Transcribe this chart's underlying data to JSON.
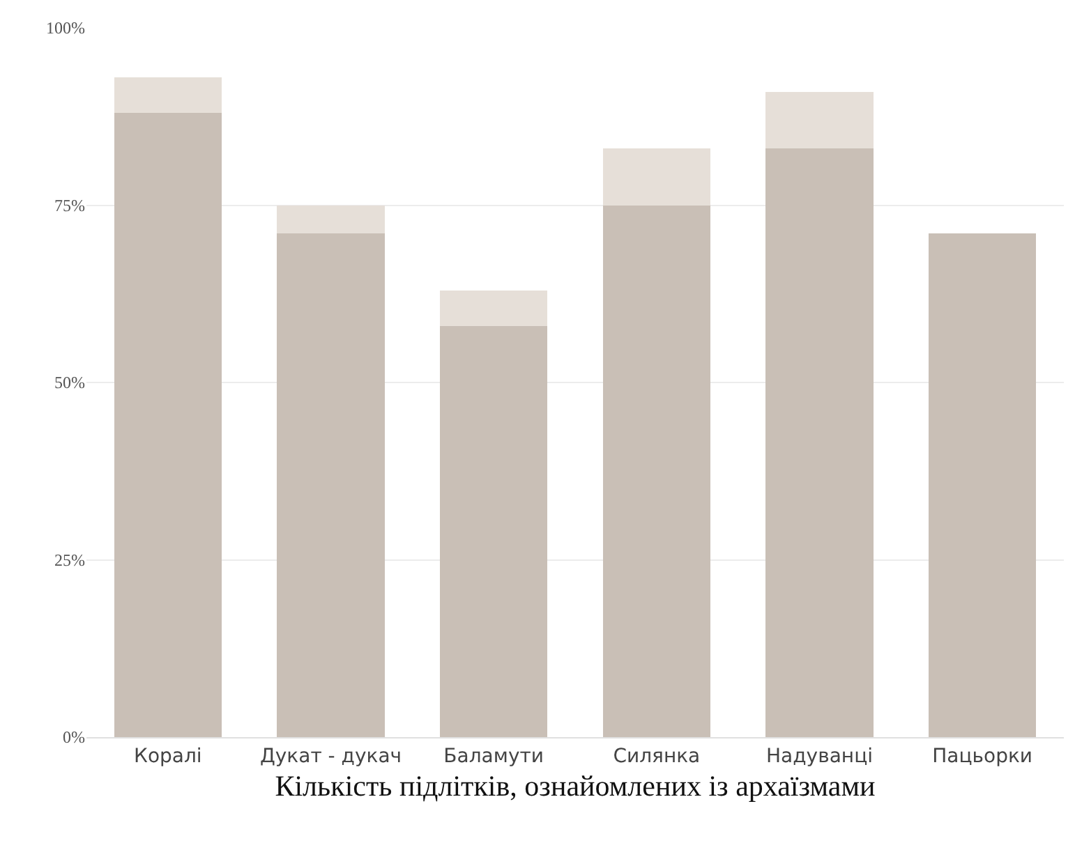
{
  "chart_data": {
    "type": "bar",
    "xlabel": "Кількість підлітків, ознайомлених із архаїзмами",
    "categories": [
      "Коралі",
      "Дукат - дукач",
      "Баламути",
      "Силянка",
      "Надуванці",
      "Пацьорки"
    ],
    "stacked": true,
    "series": [
      {
        "color": "#c9bfb6",
        "values": [
          88,
          71,
          58,
          75,
          83,
          71
        ]
      },
      {
        "color": "#e6dfd8",
        "values": [
          5,
          4,
          5,
          8,
          8,
          0
        ]
      }
    ],
    "ylim": [
      0,
      100
    ],
    "yticks": [
      {
        "value": 0,
        "label": "0%"
      },
      {
        "value": 25,
        "label": "25%"
      },
      {
        "value": 50,
        "label": "50%"
      },
      {
        "value": 75,
        "label": "75%"
      },
      {
        "value": 100,
        "label": "100%"
      }
    ],
    "grid": "y"
  }
}
